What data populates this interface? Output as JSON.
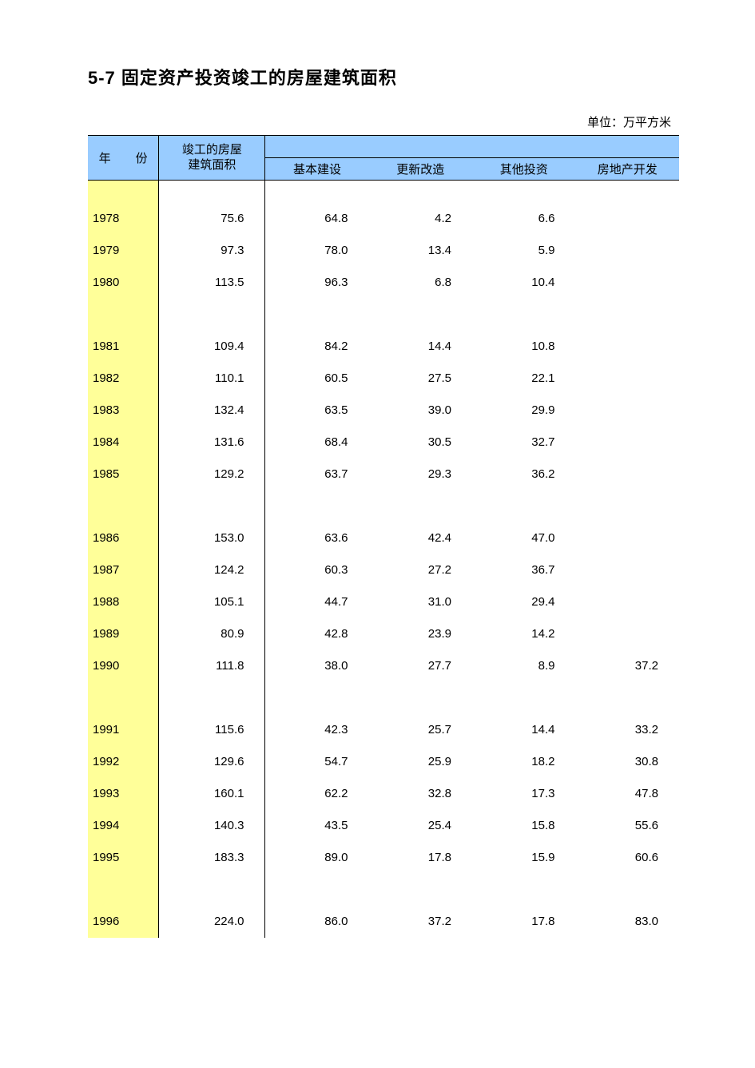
{
  "title": "5-7 固定资产投资竣工的房屋建筑面积",
  "unit_label": "单位：万平方米",
  "table": {
    "type": "table",
    "background_color": "#ffffff",
    "header_bg": "#99ccff",
    "year_col_bg": "#ffff99",
    "border_color": "#000000",
    "text_color": "#000000",
    "font_size_pt": 11,
    "title_font_size_pt": 16,
    "columns": {
      "year": "年　份",
      "total": "竣工的房屋\n建筑面积",
      "sub": [
        "基本建设",
        "更新改造",
        "其他投资",
        "房地产开发"
      ]
    },
    "col_widths_pct": [
      12,
      18,
      17.5,
      17.5,
      17.5,
      17.5
    ],
    "groups": [
      {
        "rows": [
          {
            "year": "1978",
            "total": "75.6",
            "v": [
              "64.8",
              "4.2",
              "6.6",
              ""
            ]
          },
          {
            "year": "1979",
            "total": "97.3",
            "v": [
              "78.0",
              "13.4",
              "5.9",
              ""
            ]
          },
          {
            "year": "1980",
            "total": "113.5",
            "v": [
              "96.3",
              "6.8",
              "10.4",
              ""
            ]
          }
        ]
      },
      {
        "rows": [
          {
            "year": "1981",
            "total": "109.4",
            "v": [
              "84.2",
              "14.4",
              "10.8",
              ""
            ]
          },
          {
            "year": "1982",
            "total": "110.1",
            "v": [
              "60.5",
              "27.5",
              "22.1",
              ""
            ]
          },
          {
            "year": "1983",
            "total": "132.4",
            "v": [
              "63.5",
              "39.0",
              "29.9",
              ""
            ]
          },
          {
            "year": "1984",
            "total": "131.6",
            "v": [
              "68.4",
              "30.5",
              "32.7",
              ""
            ]
          },
          {
            "year": "1985",
            "total": "129.2",
            "v": [
              "63.7",
              "29.3",
              "36.2",
              ""
            ]
          }
        ]
      },
      {
        "rows": [
          {
            "year": "1986",
            "total": "153.0",
            "v": [
              "63.6",
              "42.4",
              "47.0",
              ""
            ]
          },
          {
            "year": "1987",
            "total": "124.2",
            "v": [
              "60.3",
              "27.2",
              "36.7",
              ""
            ]
          },
          {
            "year": "1988",
            "total": "105.1",
            "v": [
              "44.7",
              "31.0",
              "29.4",
              ""
            ]
          },
          {
            "year": "1989",
            "total": "80.9",
            "v": [
              "42.8",
              "23.9",
              "14.2",
              ""
            ]
          },
          {
            "year": "1990",
            "total": "111.8",
            "v": [
              "38.0",
              "27.7",
              "8.9",
              "37.2"
            ]
          }
        ]
      },
      {
        "rows": [
          {
            "year": "1991",
            "total": "115.6",
            "v": [
              "42.3",
              "25.7",
              "14.4",
              "33.2"
            ]
          },
          {
            "year": "1992",
            "total": "129.6",
            "v": [
              "54.7",
              "25.9",
              "18.2",
              "30.8"
            ]
          },
          {
            "year": "1993",
            "total": "160.1",
            "v": [
              "62.2",
              "32.8",
              "17.3",
              "47.8"
            ]
          },
          {
            "year": "1994",
            "total": "140.3",
            "v": [
              "43.5",
              "25.4",
              "15.8",
              "55.6"
            ]
          },
          {
            "year": "1995",
            "total": "183.3",
            "v": [
              "89.0",
              "17.8",
              "15.9",
              "60.6"
            ]
          }
        ]
      },
      {
        "rows": [
          {
            "year": "1996",
            "total": "224.0",
            "v": [
              "86.0",
              "37.2",
              "17.8",
              "83.0"
            ]
          }
        ]
      }
    ]
  }
}
